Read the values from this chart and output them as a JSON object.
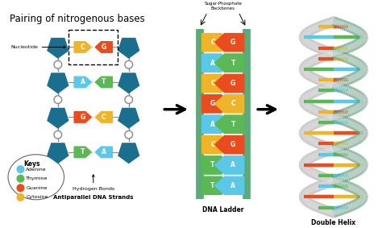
{
  "title": "Pairing of nitrogenous bases",
  "title_fontsize": 8.5,
  "bg_color": "#ffffff",
  "teal": "#1a6f8f",
  "adenine_color": "#5bc8e8",
  "thymine_color": "#5ab955",
  "guanine_color": "#e84c1f",
  "cytosine_color": "#f0b429",
  "backbone_color": "#5aaa7a",
  "ladder_pairs": [
    {
      "left": "C",
      "right": "G",
      "lc": "#f0b429",
      "rc": "#e84c1f"
    },
    {
      "left": "A",
      "right": "T",
      "lc": "#5bc8e8",
      "rc": "#5ab955"
    },
    {
      "left": "C",
      "right": "G",
      "lc": "#f0b429",
      "rc": "#e84c1f"
    },
    {
      "left": "G",
      "right": "C",
      "lc": "#e84c1f",
      "rc": "#f0b429"
    },
    {
      "left": "A",
      "right": "T",
      "lc": "#5bc8e8",
      "rc": "#5ab955"
    },
    {
      "left": "C",
      "right": "G",
      "lc": "#f0b429",
      "rc": "#e84c1f"
    },
    {
      "left": "T",
      "right": "A",
      "lc": "#5ab955",
      "rc": "#5bc8e8"
    },
    {
      "left": "T",
      "right": "A",
      "lc": "#5ab955",
      "rc": "#5bc8e8"
    }
  ],
  "strand_pairs": [
    {
      "left_label": "C",
      "right_label": "G",
      "lc": "#f0b429",
      "rc": "#e84c1f"
    },
    {
      "left_label": "A",
      "right_label": "T",
      "lc": "#5bc8e8",
      "rc": "#5ab955"
    },
    {
      "left_label": "G",
      "right_label": "C",
      "lc": "#e84c1f",
      "rc": "#f0b429"
    },
    {
      "left_label": "T",
      "right_label": "A",
      "lc": "#5ab955",
      "rc": "#5bc8e8"
    }
  ],
  "keys": [
    {
      "label": "Adenine",
      "color": "#5bc8e8"
    },
    {
      "label": "Thymine",
      "color": "#5ab955"
    },
    {
      "label": "Guanine",
      "color": "#e84c1f"
    },
    {
      "label": "Cytosine",
      "color": "#f0b429"
    }
  ],
  "label_antiparallel": "Antiparallel DNA Strands",
  "label_ladder": "DNA Ladder",
  "label_helix": "Double Helix",
  "label_nucleotide": "Nucleotide",
  "label_hbonds": "Hydrogen Bonds",
  "label_sugar_phosphate": "Sugar-Phosphate\nBackbones",
  "arrow_color": "#1a1a1a",
  "helix_rung_colors": [
    "#f0b429",
    "#5bc8e8",
    "#e84c1f",
    "#f0b429",
    "#5bc8e8",
    "#e84c1f",
    "#5ab955",
    "#5ab955",
    "#f0b429",
    "#5bc8e8",
    "#e84c1f",
    "#f0b429",
    "#5bc8e8",
    "#e84c1f",
    "#5ab955",
    "#5ab955"
  ],
  "helix_rung_colors_r": [
    "#e84c1f",
    "#5ab955",
    "#f0b429",
    "#e84c1f",
    "#5ab955",
    "#f0b429",
    "#5bc8e8",
    "#5bc8e8",
    "#e84c1f",
    "#5ab955",
    "#f0b429",
    "#e84c1f",
    "#5ab955",
    "#f0b429",
    "#5bc8e8",
    "#5bc8e8"
  ]
}
